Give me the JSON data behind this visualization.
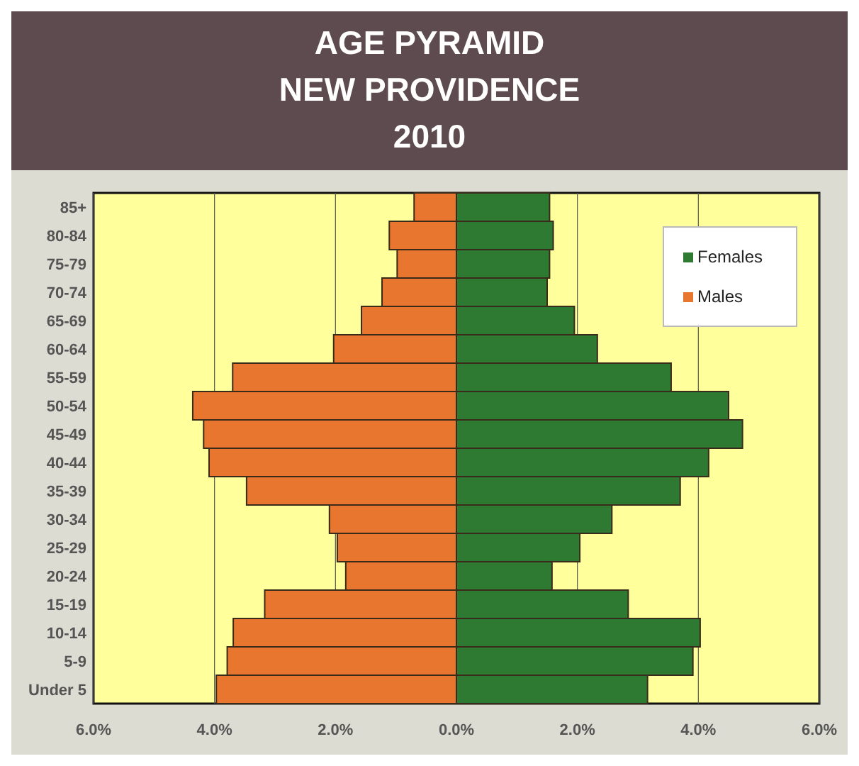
{
  "chart_data": {
    "type": "bar",
    "orientation": "horizontal",
    "stacked": true,
    "title": "AGE PYRAMID\nNEW PROVIDENCE\n2010",
    "categories": [
      "85+",
      "80-84",
      "75-79",
      "70-74",
      "65-69",
      "60-64",
      "55-59",
      "50-54",
      "45-49",
      "40-44",
      "35-39",
      "30-34",
      "25-29",
      "20-24",
      "15-19",
      "10-14",
      "5-9",
      "Under 5"
    ],
    "series": [
      {
        "name": "Females",
        "color": "#2e7a32",
        "values": [
          1.54,
          1.6,
          1.54,
          1.5,
          1.95,
          2.33,
          3.55,
          4.5,
          4.73,
          4.17,
          3.7,
          2.57,
          2.04,
          1.58,
          2.84,
          4.03,
          3.91,
          3.16
        ]
      },
      {
        "name": "Males",
        "color": "#e8762e",
        "values": [
          -0.7,
          -1.11,
          -0.98,
          -1.23,
          -1.57,
          -2.03,
          -3.7,
          -4.36,
          -4.18,
          -4.09,
          -3.47,
          -2.1,
          -1.97,
          -1.83,
          -3.17,
          -3.69,
          -3.79,
          -3.97
        ]
      }
    ],
    "xlim": [
      -6,
      6
    ],
    "xticks": [
      {
        "value": -6,
        "label": "6.0%"
      },
      {
        "value": -4,
        "label": "4.0%"
      },
      {
        "value": -2,
        "label": "2.0%"
      },
      {
        "value": 0,
        "label": "0.0%"
      },
      {
        "value": 2,
        "label": "2.0%"
      },
      {
        "value": 4,
        "label": "4.0%"
      },
      {
        "value": 6,
        "label": "6.0%"
      }
    ],
    "grid": "x",
    "legend": "top right"
  }
}
